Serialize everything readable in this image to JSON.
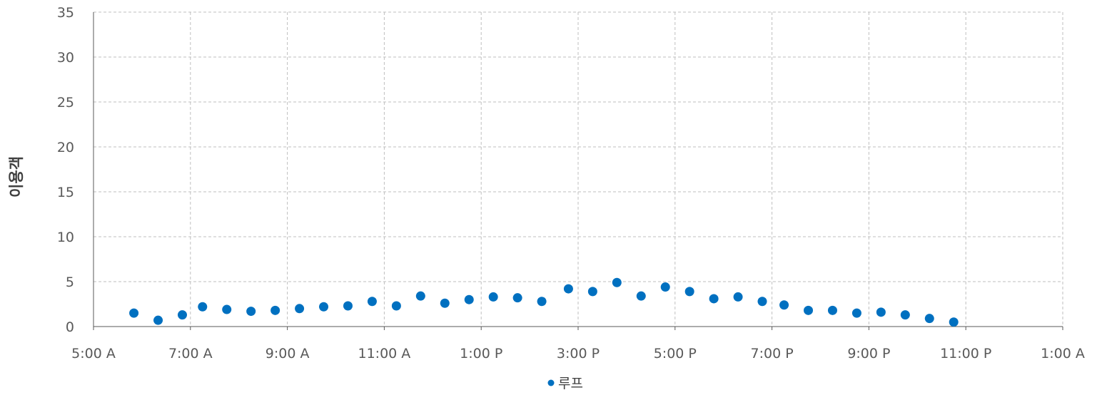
{
  "chart_data": {
    "type": "scatter",
    "title": "",
    "xlabel": "",
    "ylabel": "이용객",
    "ylim": [
      0,
      35
    ],
    "yticks": [
      "0",
      "5",
      "10",
      "15",
      "20",
      "25",
      "30",
      "35"
    ],
    "xlim_hours": [
      5,
      25
    ],
    "xticks": [
      "5:00 A",
      "7:00 A",
      "9:00 A",
      "11:00 A",
      "1:00 P",
      "3:00 P",
      "5:00 P",
      "7:00 P",
      "9:00 P",
      "11:00 P",
      "1:00 A"
    ],
    "grid": true,
    "legend_position": "bottom",
    "colors": {
      "series": "#0070c0",
      "grid": "#bfbfbf",
      "axis": "#595959"
    },
    "series": [
      {
        "name": "루프",
        "marker": "circle",
        "points": [
          {
            "x": "5:50 A",
            "y": 1.5
          },
          {
            "x": "6:20 A",
            "y": 0.7
          },
          {
            "x": "6:50 A",
            "y": 1.3
          },
          {
            "x": "7:15 A",
            "y": 2.2
          },
          {
            "x": "7:45 A",
            "y": 1.9
          },
          {
            "x": "8:15 A",
            "y": 1.7
          },
          {
            "x": "8:45 A",
            "y": 1.8
          },
          {
            "x": "9:15 A",
            "y": 2.0
          },
          {
            "x": "9:45 A",
            "y": 2.2
          },
          {
            "x": "10:15 A",
            "y": 2.3
          },
          {
            "x": "10:45 A",
            "y": 2.8
          },
          {
            "x": "11:15 A",
            "y": 2.3
          },
          {
            "x": "11:45 A",
            "y": 3.4
          },
          {
            "x": "12:15 P",
            "y": 2.6
          },
          {
            "x": "12:45 P",
            "y": 3.0
          },
          {
            "x": "1:15 P",
            "y": 3.3
          },
          {
            "x": "1:45 P",
            "y": 3.2
          },
          {
            "x": "2:15 P",
            "y": 2.8
          },
          {
            "x": "2:48 P",
            "y": 4.2
          },
          {
            "x": "3:18 P",
            "y": 3.9
          },
          {
            "x": "3:48 P",
            "y": 4.9
          },
          {
            "x": "4:18 P",
            "y": 3.4
          },
          {
            "x": "4:48 P",
            "y": 4.4
          },
          {
            "x": "5:18 P",
            "y": 3.9
          },
          {
            "x": "5:48 P",
            "y": 3.1
          },
          {
            "x": "6:18 P",
            "y": 3.3
          },
          {
            "x": "6:48 P",
            "y": 2.8
          },
          {
            "x": "7:15 P",
            "y": 2.4
          },
          {
            "x": "7:45 P",
            "y": 1.8
          },
          {
            "x": "8:15 P",
            "y": 1.8
          },
          {
            "x": "8:45 P",
            "y": 1.5
          },
          {
            "x": "9:15 P",
            "y": 1.6
          },
          {
            "x": "9:45 P",
            "y": 1.3
          },
          {
            "x": "10:15 P",
            "y": 0.9
          },
          {
            "x": "10:45 P",
            "y": 0.5
          }
        ]
      }
    ]
  }
}
